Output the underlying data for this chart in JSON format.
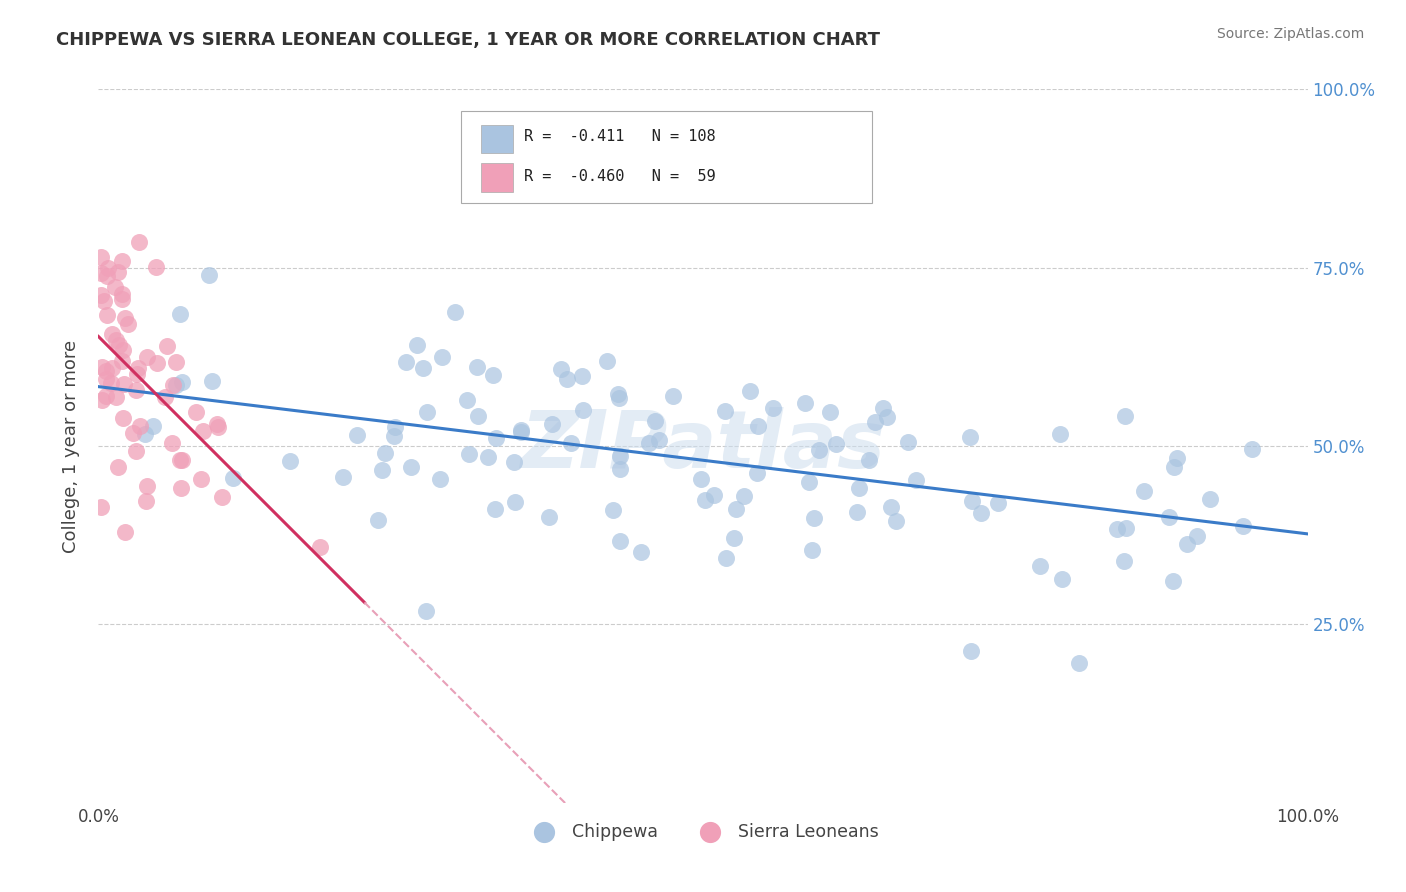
{
  "title": "CHIPPEWA VS SIERRA LEONEAN COLLEGE, 1 YEAR OR MORE CORRELATION CHART",
  "source_text": "Source: ZipAtlas.com",
  "ylabel": "College, 1 year or more",
  "xlim": [
    0.0,
    1.0
  ],
  "ylim": [
    0.0,
    1.0
  ],
  "blue_color": "#aac4e0",
  "pink_color": "#f0a0b8",
  "trendline_blue": "#3a7bc8",
  "trendline_pink": "#d03060",
  "trendline_pink_dashed": "#e8a0b8",
  "background_color": "#ffffff",
  "grid_color": "#cccccc",
  "right_tick_color": "#5090d0",
  "watermark": "ZIPatlas",
  "legend_r1_r": "-0.411",
  "legend_r1_n": "108",
  "legend_r2_r": "-0.460",
  "legend_r2_n": "59"
}
